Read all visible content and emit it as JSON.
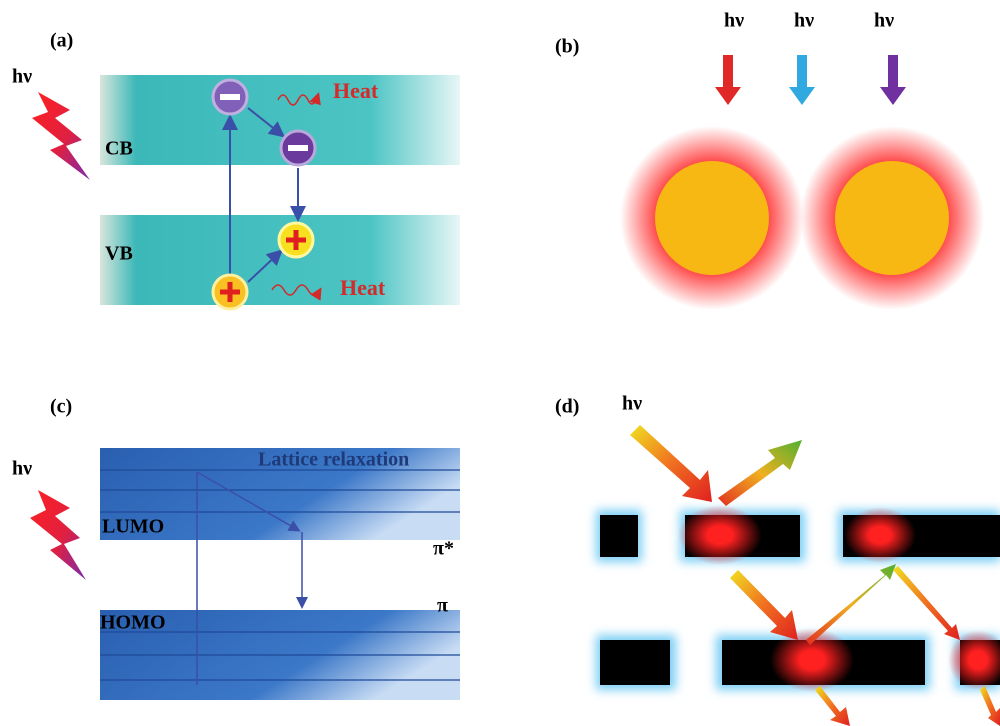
{
  "panels": [
    {
      "label": "(a)",
      "photon": "hν",
      "bands": [
        "CB",
        "VB"
      ],
      "heat": [
        "Heat",
        "Heat"
      ]
    },
    {
      "label": "(b)",
      "photons": [
        "hν",
        "hν",
        "hν"
      ]
    },
    {
      "label": "(c)",
      "photon": "hν",
      "annotation": "Lattice relaxation",
      "levels": [
        "LUMO",
        "HOMO"
      ],
      "orbitals": [
        "π*",
        "π"
      ]
    },
    {
      "label": "(d)",
      "photon": "hν"
    }
  ]
}
